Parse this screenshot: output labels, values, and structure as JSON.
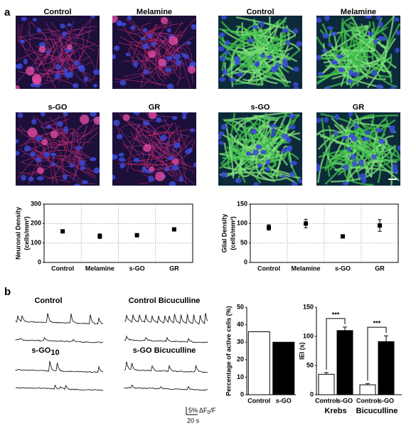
{
  "panel_labels": [
    "a",
    "b"
  ],
  "image_labels": {
    "neuron": [
      "Control",
      "Melamine",
      "s-GO",
      "GR"
    ],
    "glia": [
      "Control",
      "Melamine",
      "s-GO",
      "GR"
    ]
  },
  "trace_labels": [
    {
      "text": "Control"
    },
    {
      "text": "Control Bicuculline"
    },
    {
      "text": "s-GO",
      "subscript": "10"
    },
    {
      "text": "s-GO Bicuculline"
    }
  ],
  "scale_bar": {
    "amplitude": [
      "5% ΔF",
      "0",
      "/F"
    ],
    "time": "20 s"
  },
  "chart_data": [
    {
      "type": "point",
      "ylabel": [
        "Neuronal Density",
        "(cells/mm²)"
      ],
      "categories": [
        "Control",
        "Melamine",
        "s-GO",
        "GR"
      ],
      "values": [
        160,
        135,
        140,
        170
      ],
      "errors": [
        8,
        12,
        8,
        8
      ],
      "color": "#000000",
      "ylim": [
        0,
        300
      ],
      "yticks": [
        0,
        100,
        200,
        300
      ],
      "grid": true
    },
    {
      "type": "point",
      "ylabel": [
        "Glial Density",
        "(cells/mm²)"
      ],
      "categories": [
        "Control",
        "Melamine",
        "s-GO",
        "GR"
      ],
      "values": [
        90,
        100,
        67,
        95
      ],
      "errors": [
        7,
        11,
        4,
        15
      ],
      "color": "#000000",
      "ylim": [
        0,
        150
      ],
      "yticks": [
        0,
        50,
        100,
        150
      ],
      "grid": true
    },
    {
      "type": "bar",
      "ylabel": [
        "Percentage of active cells (%)"
      ],
      "categories": [
        "Control",
        "s-GO"
      ],
      "values": [
        36,
        30
      ],
      "colors": [
        "#ffffff",
        "#000000"
      ],
      "ylim": [
        0,
        50
      ],
      "yticks": [
        0,
        10,
        20,
        30,
        40,
        50
      ],
      "grid": false
    },
    {
      "type": "bar",
      "ylabel": [
        "IEI (s)"
      ],
      "categories": [
        "Control",
        "s-GO",
        "Control",
        "s-GO"
      ],
      "groups": [
        "Krebs",
        "Bicuculline"
      ],
      "values": [
        35,
        110,
        17,
        91
      ],
      "errors": [
        3,
        6,
        2,
        10
      ],
      "colors": [
        "#ffffff",
        "#000000",
        "#ffffff",
        "#000000"
      ],
      "annotations": [
        "***",
        "***"
      ],
      "ylim": [
        0,
        150
      ],
      "yticks": [
        0,
        50,
        100,
        150
      ],
      "grid": false
    }
  ]
}
